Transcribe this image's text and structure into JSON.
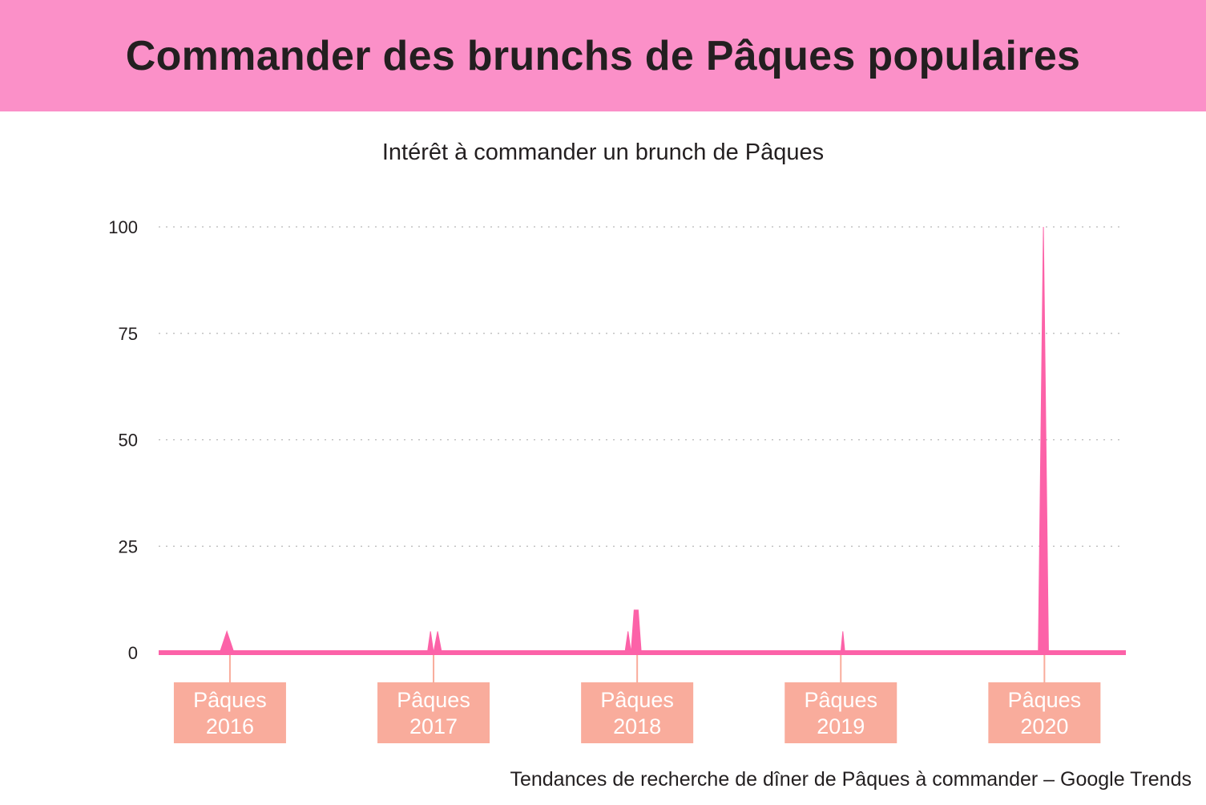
{
  "header": {
    "title": "Commander des brunchs de Pâques populaires"
  },
  "source": "Tendances de recherche de dîner de Pâques à commander – Google Trends",
  "colors": {
    "banner": "#fb90c8",
    "area": "#fc62a8",
    "label_box": "#f9ac9c",
    "grid": "#b8b8b8",
    "text": "#231f20"
  },
  "chart_data": {
    "type": "area",
    "title": "Intérêt à commander un brunch de Pâques",
    "xlabel": "",
    "ylabel": "",
    "ylim": [
      0,
      100
    ],
    "yticks": [
      0,
      25,
      50,
      75,
      100
    ],
    "grid": true,
    "xlim": [
      2015.65,
      2020.4
    ],
    "annotations": [
      {
        "x": 2016.0,
        "lines": [
          "Pâques",
          "2016"
        ]
      },
      {
        "x": 2017.0,
        "lines": [
          "Pâques",
          "2017"
        ]
      },
      {
        "x": 2018.0,
        "lines": [
          "Pâques",
          "2018"
        ]
      },
      {
        "x": 2019.0,
        "lines": [
          "Pâques",
          "2019"
        ]
      },
      {
        "x": 2020.0,
        "lines": [
          "Pâques",
          "2020"
        ]
      }
    ],
    "series": [
      {
        "values": [
          [
            2015.65,
            0
          ],
          [
            2015.95,
            0
          ],
          [
            2015.985,
            5
          ],
          [
            2016.02,
            0
          ],
          [
            2016.05,
            0.3
          ],
          [
            2016.1,
            0
          ],
          [
            2016.97,
            0
          ],
          [
            2016.985,
            5
          ],
          [
            2017.0,
            0
          ],
          [
            2017.02,
            5
          ],
          [
            2017.04,
            0
          ],
          [
            2017.94,
            0
          ],
          [
            2017.955,
            5
          ],
          [
            2017.97,
            0
          ],
          [
            2017.985,
            10
          ],
          [
            2018.005,
            10
          ],
          [
            2018.02,
            0
          ],
          [
            2019.0,
            0
          ],
          [
            2019.01,
            5
          ],
          [
            2019.02,
            0
          ],
          [
            2019.97,
            0
          ],
          [
            2019.995,
            100
          ],
          [
            2020.02,
            0
          ],
          [
            2020.4,
            0
          ]
        ]
      }
    ]
  }
}
